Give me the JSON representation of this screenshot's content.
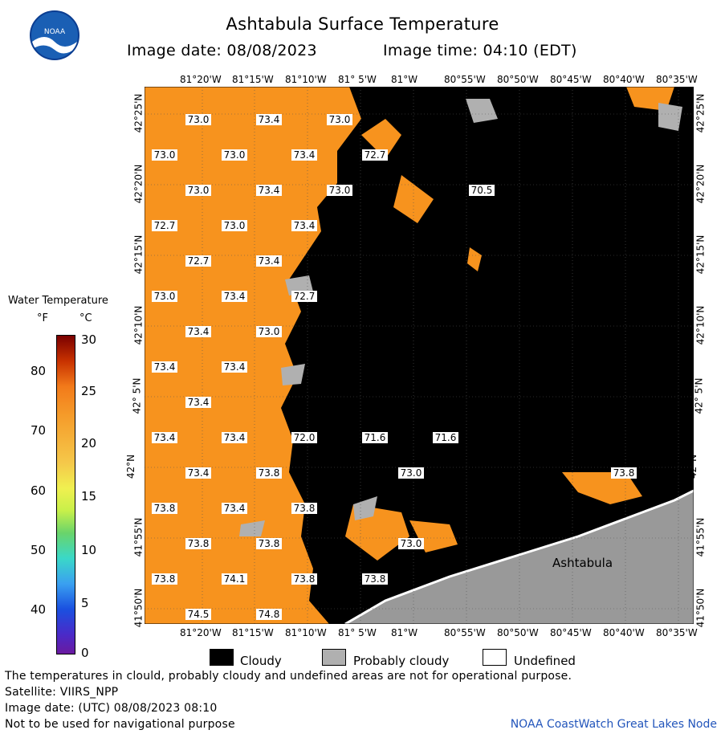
{
  "header": {
    "title": "Ashtabula Surface Temperature",
    "image_date": "Image date: 08/08/2023",
    "image_time": "Image time: 04:10 (EDT)",
    "logo_text": "NOAA"
  },
  "axes": {
    "lon_ticks": [
      "81°20'W",
      "81°15'W",
      "81°10'W",
      "81° 5'W",
      "81°W",
      "80°55'W",
      "80°50'W",
      "80°45'W",
      "80°40'W",
      "80°35'W"
    ],
    "lat_ticks": [
      "42°25'N",
      "42°20'N",
      "42°15'N",
      "42°10'N",
      "42° 5'N",
      "42°N",
      "41°55'N",
      "41°50'N"
    ]
  },
  "map": {
    "place_label": "Ashtabula",
    "temperature_labels": [
      "73.0",
      "73.4",
      "73.0",
      "73.0",
      "73.0",
      "73.4",
      "72.7",
      "73.0",
      "73.4",
      "73.0",
      "70.5",
      "72.7",
      "73.0",
      "73.4",
      "72.7",
      "73.4",
      "73.0",
      "73.4",
      "72.7",
      "73.4",
      "73.0",
      "73.4",
      "73.4",
      "73.4",
      "73.4",
      "73.4",
      "72.0",
      "71.6",
      "71.6",
      "73.4",
      "73.8",
      "73.0",
      "73.8",
      "73.8",
      "73.4",
      "73.8",
      "73.8",
      "73.8",
      "73.0",
      "73.8",
      "74.1",
      "73.8",
      "73.8",
      "74.5",
      "74.8"
    ],
    "colors": {
      "warm_water": "#f7931e",
      "cloudy": "#000000",
      "probably_cloudy": "#b0b0b0",
      "land": "#999999"
    }
  },
  "legend": {
    "title": "Water Temperature",
    "unit_f": "°F",
    "unit_c": "°C",
    "f_ticks": [
      "80",
      "70",
      "60",
      "50",
      "40"
    ],
    "c_ticks": [
      "30",
      "25",
      "20",
      "15",
      "10",
      "5",
      "0"
    ]
  },
  "key": {
    "cloudy": "Cloudy",
    "probably_cloudy": "Probably cloudy",
    "undefined": "Undefined"
  },
  "footer": {
    "note": "The temperatures in clould, probably cloudy and undefined areas are not for operational purpose.",
    "satellite": "Satellite: VIIRS_NPP",
    "utc_date": "Image date: (UTC) 08/08/2023  08:10",
    "nav_warning": "Not to be used for navigational purpose",
    "credit": "NOAA CoastWatch Great Lakes Node"
  }
}
